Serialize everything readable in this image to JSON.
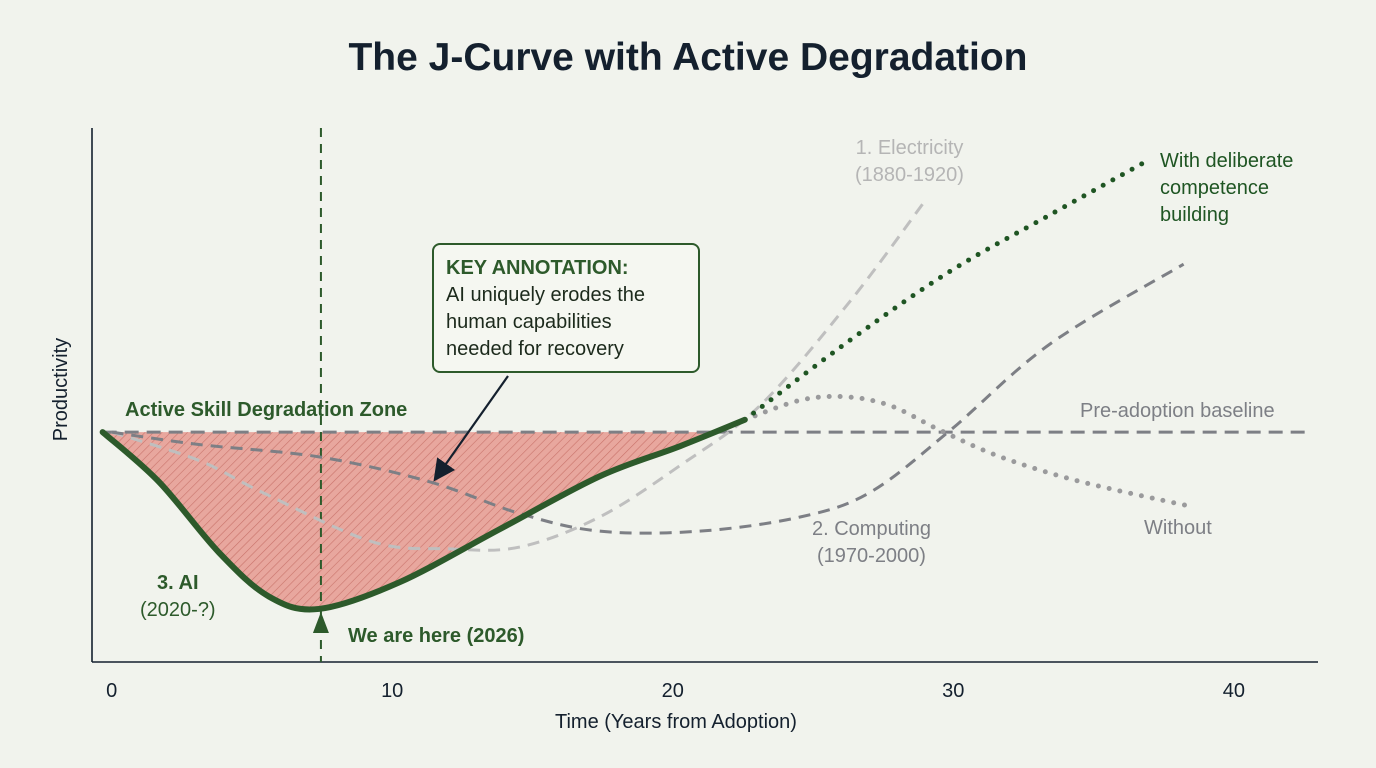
{
  "colors": {
    "background": "#f1f3ed",
    "ai": "#2d5a2b",
    "deliberate": "#1f5523",
    "without": "#9a9a9c",
    "electricity": "#bfbfbf",
    "computing": "#7d7f85",
    "baseline": "#7d7f85",
    "zone_fill": "#e8a79e",
    "zone_hatch": "#c9736a",
    "title": "#14202e"
  },
  "chart_data": {
    "type": "line",
    "title": "The J-Curve with Active Degradation",
    "xlabel": "Time (Years from Adoption)",
    "ylabel": "Productivity",
    "xlim": [
      -0.7,
      43
    ],
    "ylim": [
      -1.3,
      1.72
    ],
    "xticks": [
      0,
      10,
      20,
      30,
      40
    ],
    "yticks": [],
    "grid": false,
    "series": [
      {
        "key": "electricity",
        "name": "1. Electricity (1880-1920)",
        "style": "dashed",
        "x": [
          0,
          3.11,
          5.36,
          9.29,
          12.04,
          14.54,
          17.39,
          20.25,
          23.11,
          26.32,
          29.0
        ],
        "y": [
          0,
          -0.16,
          -0.34,
          -0.62,
          -0.66,
          -0.65,
          -0.48,
          -0.19,
          0.15,
          0.74,
          1.31
        ]
      },
      {
        "key": "computing",
        "name": "2. Computing (1970-2000)",
        "style": "dashed",
        "x": [
          0,
          3.11,
          7.39,
          11.32,
          14.54,
          17.39,
          20.96,
          24.54,
          27.04,
          29.89,
          33.46,
          38.21
        ],
        "y": [
          0,
          -0.07,
          -0.14,
          -0.28,
          -0.46,
          -0.56,
          -0.56,
          -0.48,
          -0.34,
          0.01,
          0.5,
          0.95
        ]
      },
      {
        "key": "ai",
        "name": "3. AI (2020-?)",
        "style": "solid",
        "x": [
          -0.32,
          1.68,
          3.82,
          5.61,
          7.39,
          10.25,
          13.82,
          17.39,
          20.25,
          22.57
        ],
        "y": [
          0,
          -0.28,
          -0.68,
          -0.93,
          -1.0,
          -0.85,
          -0.55,
          -0.25,
          -0.08,
          0.07
        ]
      },
      {
        "key": "deliberate",
        "name": "With deliberate competence building",
        "style": "dotted",
        "x": [
          22.57,
          26.32,
          29.89,
          33.46,
          36.75
        ],
        "y": [
          0.07,
          0.52,
          0.91,
          1.23,
          1.52
        ]
      },
      {
        "key": "without",
        "name": "Without",
        "style": "dotted",
        "x": [
          22.57,
          24.54,
          26.14,
          27.75,
          29.54,
          31.68,
          34.54,
          38.46
        ],
        "y": [
          0.07,
          0.18,
          0.2,
          0.15,
          0.01,
          -0.14,
          -0.28,
          -0.42
        ]
      }
    ],
    "baseline": {
      "label": "Pre-adoption baseline",
      "y": 0
    },
    "now_marker": {
      "label": "We are here (2026)",
      "x": 7.46
    },
    "zone": {
      "label": "Active Skill Degradation Zone"
    },
    "annotation": {
      "heading": "KEY ANNOTATION:",
      "lines": [
        "AI uniquely erodes the",
        "human capabilities",
        "needed for recovery"
      ]
    },
    "labels": {
      "electricity": [
        "1. Electricity",
        "(1880-1920)"
      ],
      "computing": [
        "2. Computing",
        "(1970-2000)"
      ],
      "ai": [
        "3. AI",
        "(2020-?)"
      ],
      "deliberate": [
        "With deliberate",
        "competence",
        "building"
      ],
      "without": "Without"
    }
  }
}
